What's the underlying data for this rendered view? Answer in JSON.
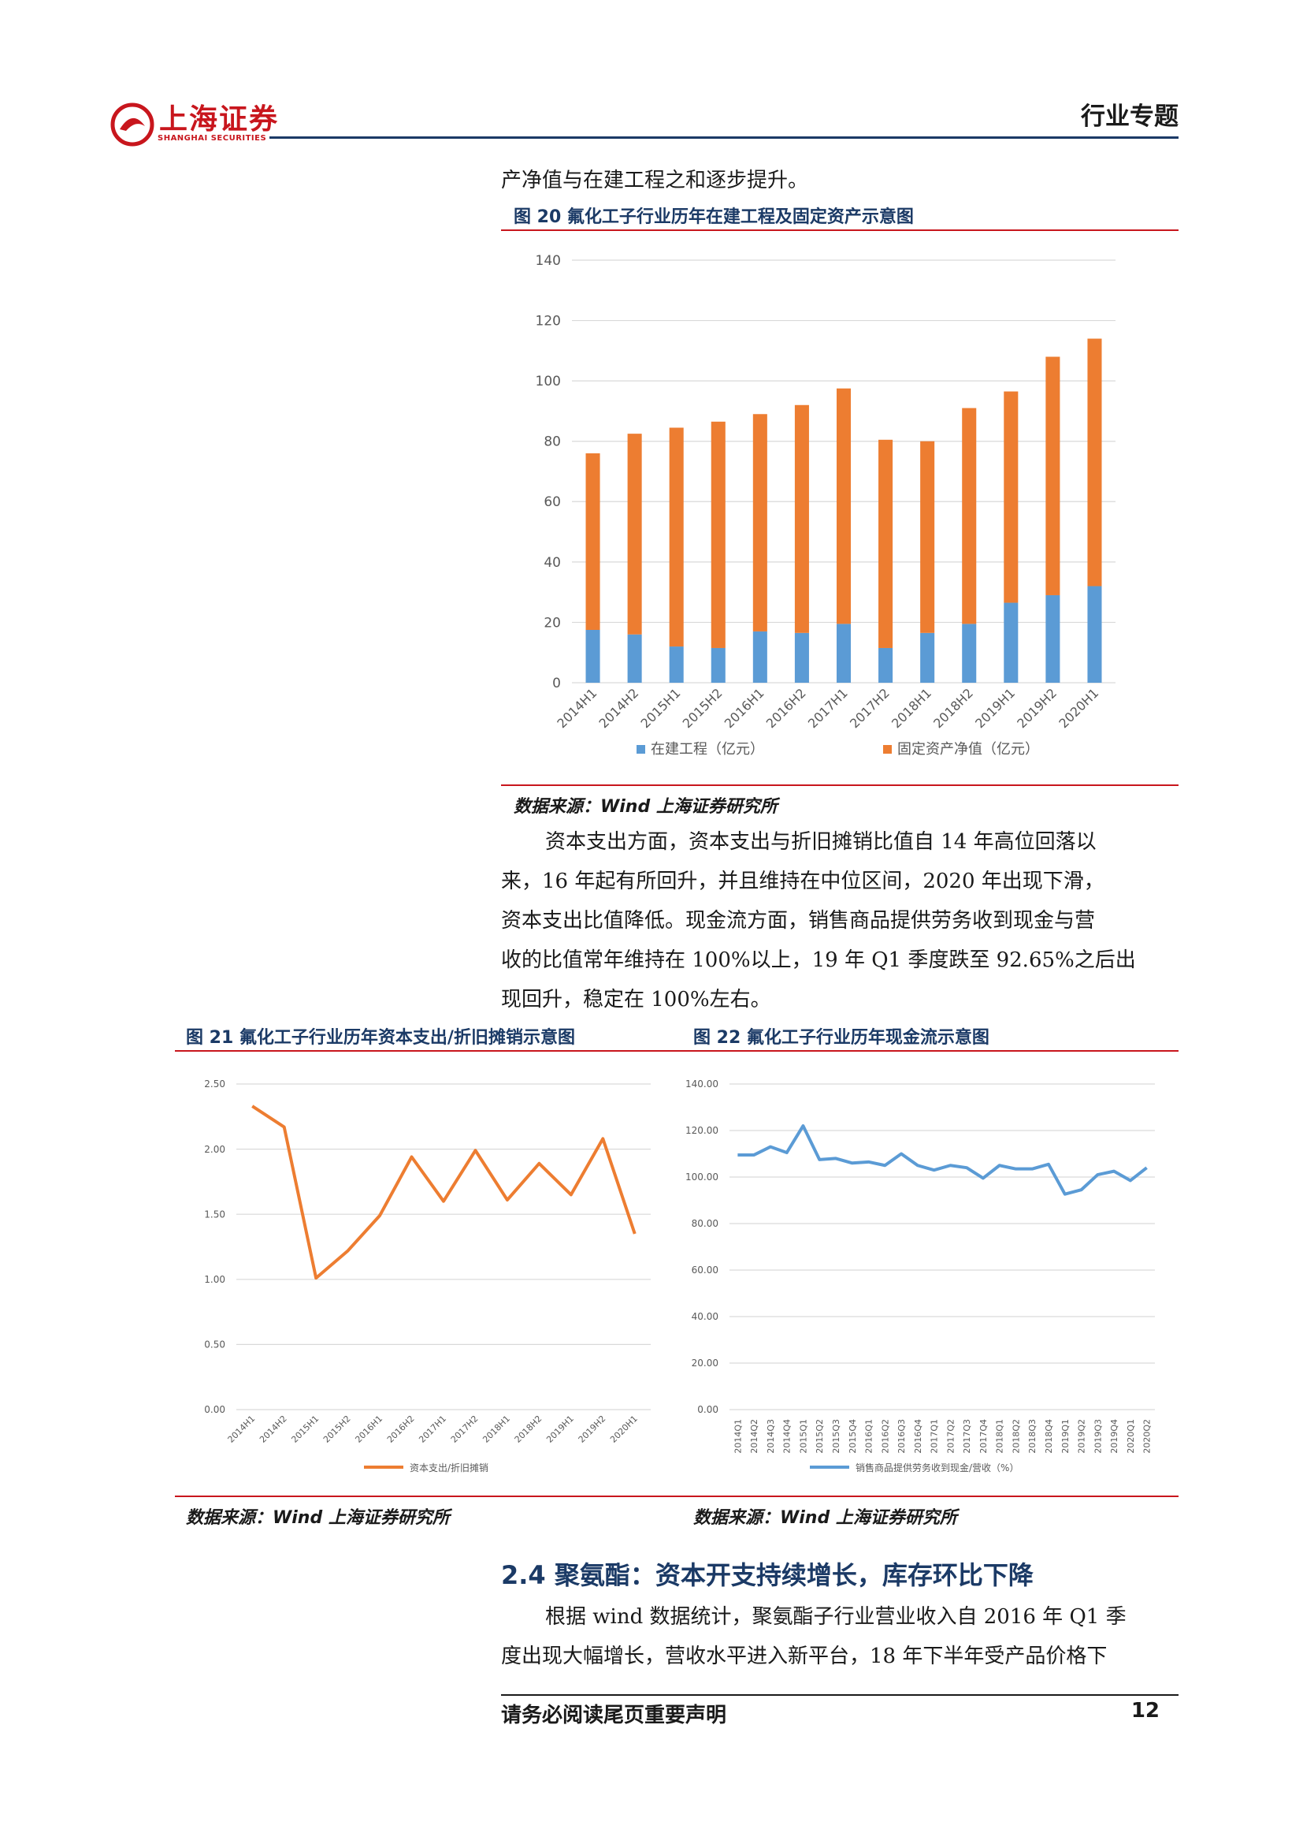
{
  "header": {
    "logo_cn": "上海证券",
    "logo_en": "SHANGHAI SECURITIES",
    "category": "行业专题"
  },
  "intro_line": "产净值与在建工程之和逐步提升。",
  "fig20": {
    "title": "图 20 氟化工子行业历年在建工程及固定资产示意图",
    "source": "数据来源：Wind 上海证券研究所"
  },
  "paragraph1": [
    "资本支出方面，资本支出与折旧摊销比值自 14 年高位回落以",
    "来，16 年起有所回升，并且维持在中位区间，2020 年出现下滑，",
    "资本支出比值降低。现金流方面，销售商品提供劳务收到现金与营",
    "收的比值常年维持在 100%以上，19 年 Q1 季度跌至 92.65%之后出",
    "现回升，稳定在 100%左右。"
  ],
  "fig21": {
    "title": "图 21 氟化工子行业历年资本支出/折旧摊销示意图",
    "source": "数据来源：Wind 上海证券研究所"
  },
  "fig22": {
    "title": "图 22 氟化工子行业历年现金流示意图",
    "source": "数据来源：Wind 上海证券研究所"
  },
  "section": {
    "heading": "2.4 聚氨酯：资本开支持续增长，库存环比下降",
    "lines": [
      "根据 wind 数据统计，聚氨酯子行业营业收入自 2016 年 Q1 季",
      "度出现大幅增长，营收水平进入新平台，18 年下半年受产品价格下"
    ]
  },
  "footer": {
    "disclaimer": "请务必阅读尾页重要声明",
    "page": "12"
  },
  "chart_data": [
    {
      "type": "bar",
      "stacked": true,
      "categories": [
        "2014H1",
        "2014H2",
        "2015H1",
        "2015H2",
        "2016H1",
        "2016H2",
        "2017H1",
        "2017H2",
        "2018H1",
        "2018H2",
        "2019H1",
        "2019H2",
        "2020H1"
      ],
      "series": [
        {
          "name": "在建工程（亿元）",
          "color": "#5b9bd5",
          "values": [
            17.5,
            16,
            12,
            11.5,
            17,
            16.5,
            19.5,
            11.5,
            16.5,
            19.5,
            26.5,
            29,
            32
          ]
        },
        {
          "name": "固定资产净值（亿元）",
          "color": "#ed7d31",
          "values": [
            58.5,
            66.5,
            72.5,
            75,
            72,
            75.5,
            78,
            69,
            63.5,
            71.5,
            70,
            79,
            82
          ]
        }
      ],
      "ylim": [
        0,
        140
      ],
      "yticks": [
        "0",
        "20",
        "40",
        "60",
        "80",
        "100",
        "120",
        "140"
      ],
      "grid": true,
      "legend": "bottom"
    },
    {
      "type": "line",
      "categories": [
        "2014H1",
        "2014H2",
        "2015H1",
        "2015H2",
        "2016H1",
        "2016H2",
        "2017H1",
        "2017H2",
        "2018H1",
        "2018H2",
        "2019H1",
        "2019H2",
        "2020H1"
      ],
      "series": [
        {
          "name": "资本支出/折旧摊销",
          "color": "#ed7d31",
          "values": [
            2.33,
            2.17,
            1.01,
            1.22,
            1.49,
            1.94,
            1.6,
            1.99,
            1.61,
            1.89,
            1.65,
            2.08,
            1.35
          ]
        }
      ],
      "ylim": [
        0,
        2.5
      ],
      "yticks": [
        "0.00",
        "0.50",
        "1.00",
        "1.50",
        "2.00",
        "2.50"
      ],
      "grid": true,
      "legend": "bottom"
    },
    {
      "type": "line",
      "categories": [
        "2014Q1",
        "2014Q2",
        "2014Q3",
        "2014Q4",
        "2015Q1",
        "2015Q2",
        "2015Q3",
        "2015Q4",
        "2016Q1",
        "2016Q2",
        "2016Q3",
        "2016Q4",
        "2017Q1",
        "2017Q2",
        "2017Q3",
        "2017Q4",
        "2018Q1",
        "2018Q2",
        "2018Q3",
        "2018Q4",
        "2019Q1",
        "2019Q2",
        "2019Q3",
        "2019Q4",
        "2020Q1",
        "2020Q2"
      ],
      "series": [
        {
          "name": "销售商品提供劳务收到现金/营收（%）",
          "color": "#5b9bd5",
          "values": [
            109.5,
            109.5,
            113,
            110.5,
            122,
            107.5,
            108,
            106,
            106.5,
            105,
            110,
            105,
            103,
            105,
            104,
            99.5,
            105,
            103.5,
            103.5,
            105.5,
            92.65,
            94.5,
            101,
            102.5,
            98.5,
            104
          ]
        }
      ],
      "ylim": [
        0,
        140
      ],
      "yticks": [
        "0.00",
        "20.00",
        "40.00",
        "60.00",
        "80.00",
        "100.00",
        "120.00",
        "140.00"
      ],
      "grid": true,
      "legend": "bottom"
    }
  ]
}
